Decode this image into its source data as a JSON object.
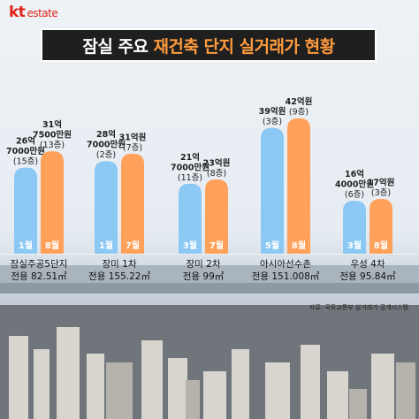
{
  "brand": {
    "logo": "kt",
    "name": "estate"
  },
  "title": {
    "part1": "잠실 주요",
    "part2": "재건축 단지 실거래가 현황"
  },
  "source": "자료: 국토교통부 실거래가 공개시스템",
  "colors": {
    "before": "#8cc8f4",
    "after": "#ffa15a",
    "title_bg": "#1f1f1f",
    "brand": "#e2231a"
  },
  "chart_data": {
    "type": "bar",
    "unit": "억원",
    "groups": [
      {
        "name": "잠실주공5단지",
        "area": "전용 82.51㎡",
        "bars": [
          {
            "month": "1월",
            "value": 26.7,
            "label_lines": [
              "26억",
              "7000만원",
              "(15층)"
            ]
          },
          {
            "month": "8월",
            "value": 31.75,
            "label_lines": [
              "31억",
              "7500만원",
              "(13층)"
            ]
          }
        ]
      },
      {
        "name": "장미 1차",
        "area": "전용 155.22㎡",
        "bars": [
          {
            "month": "1월",
            "value": 28.7,
            "label_lines": [
              "28억",
              "7000만원",
              "(2층)"
            ]
          },
          {
            "month": "7월",
            "value": 31,
            "label_lines": [
              "31억원",
              "(7층)"
            ]
          }
        ]
      },
      {
        "name": "장미 2차",
        "area": "전용 99㎡",
        "bars": [
          {
            "month": "3월",
            "value": 21.7,
            "label_lines": [
              "21억",
              "7000만원",
              "(11층)"
            ]
          },
          {
            "month": "7월",
            "value": 23,
            "label_lines": [
              "23억원",
              "(8층)"
            ]
          }
        ]
      },
      {
        "name": "아시아선수촌",
        "area": "전용 151.008㎡",
        "bars": [
          {
            "month": "5월",
            "value": 39,
            "label_lines": [
              "39억원",
              "(3층)"
            ]
          },
          {
            "month": "8월",
            "value": 42,
            "label_lines": [
              "42억원",
              "(9층)"
            ]
          }
        ]
      },
      {
        "name": "우성 4차",
        "area": "전용 95.84㎡",
        "bars": [
          {
            "month": "3월",
            "value": 16.4,
            "label_lines": [
              "16억",
              "4000만원",
              "(6층)"
            ]
          },
          {
            "month": "8월",
            "value": 17,
            "label_lines": [
              "17억원",
              "(3층)"
            ]
          }
        ]
      }
    ]
  }
}
